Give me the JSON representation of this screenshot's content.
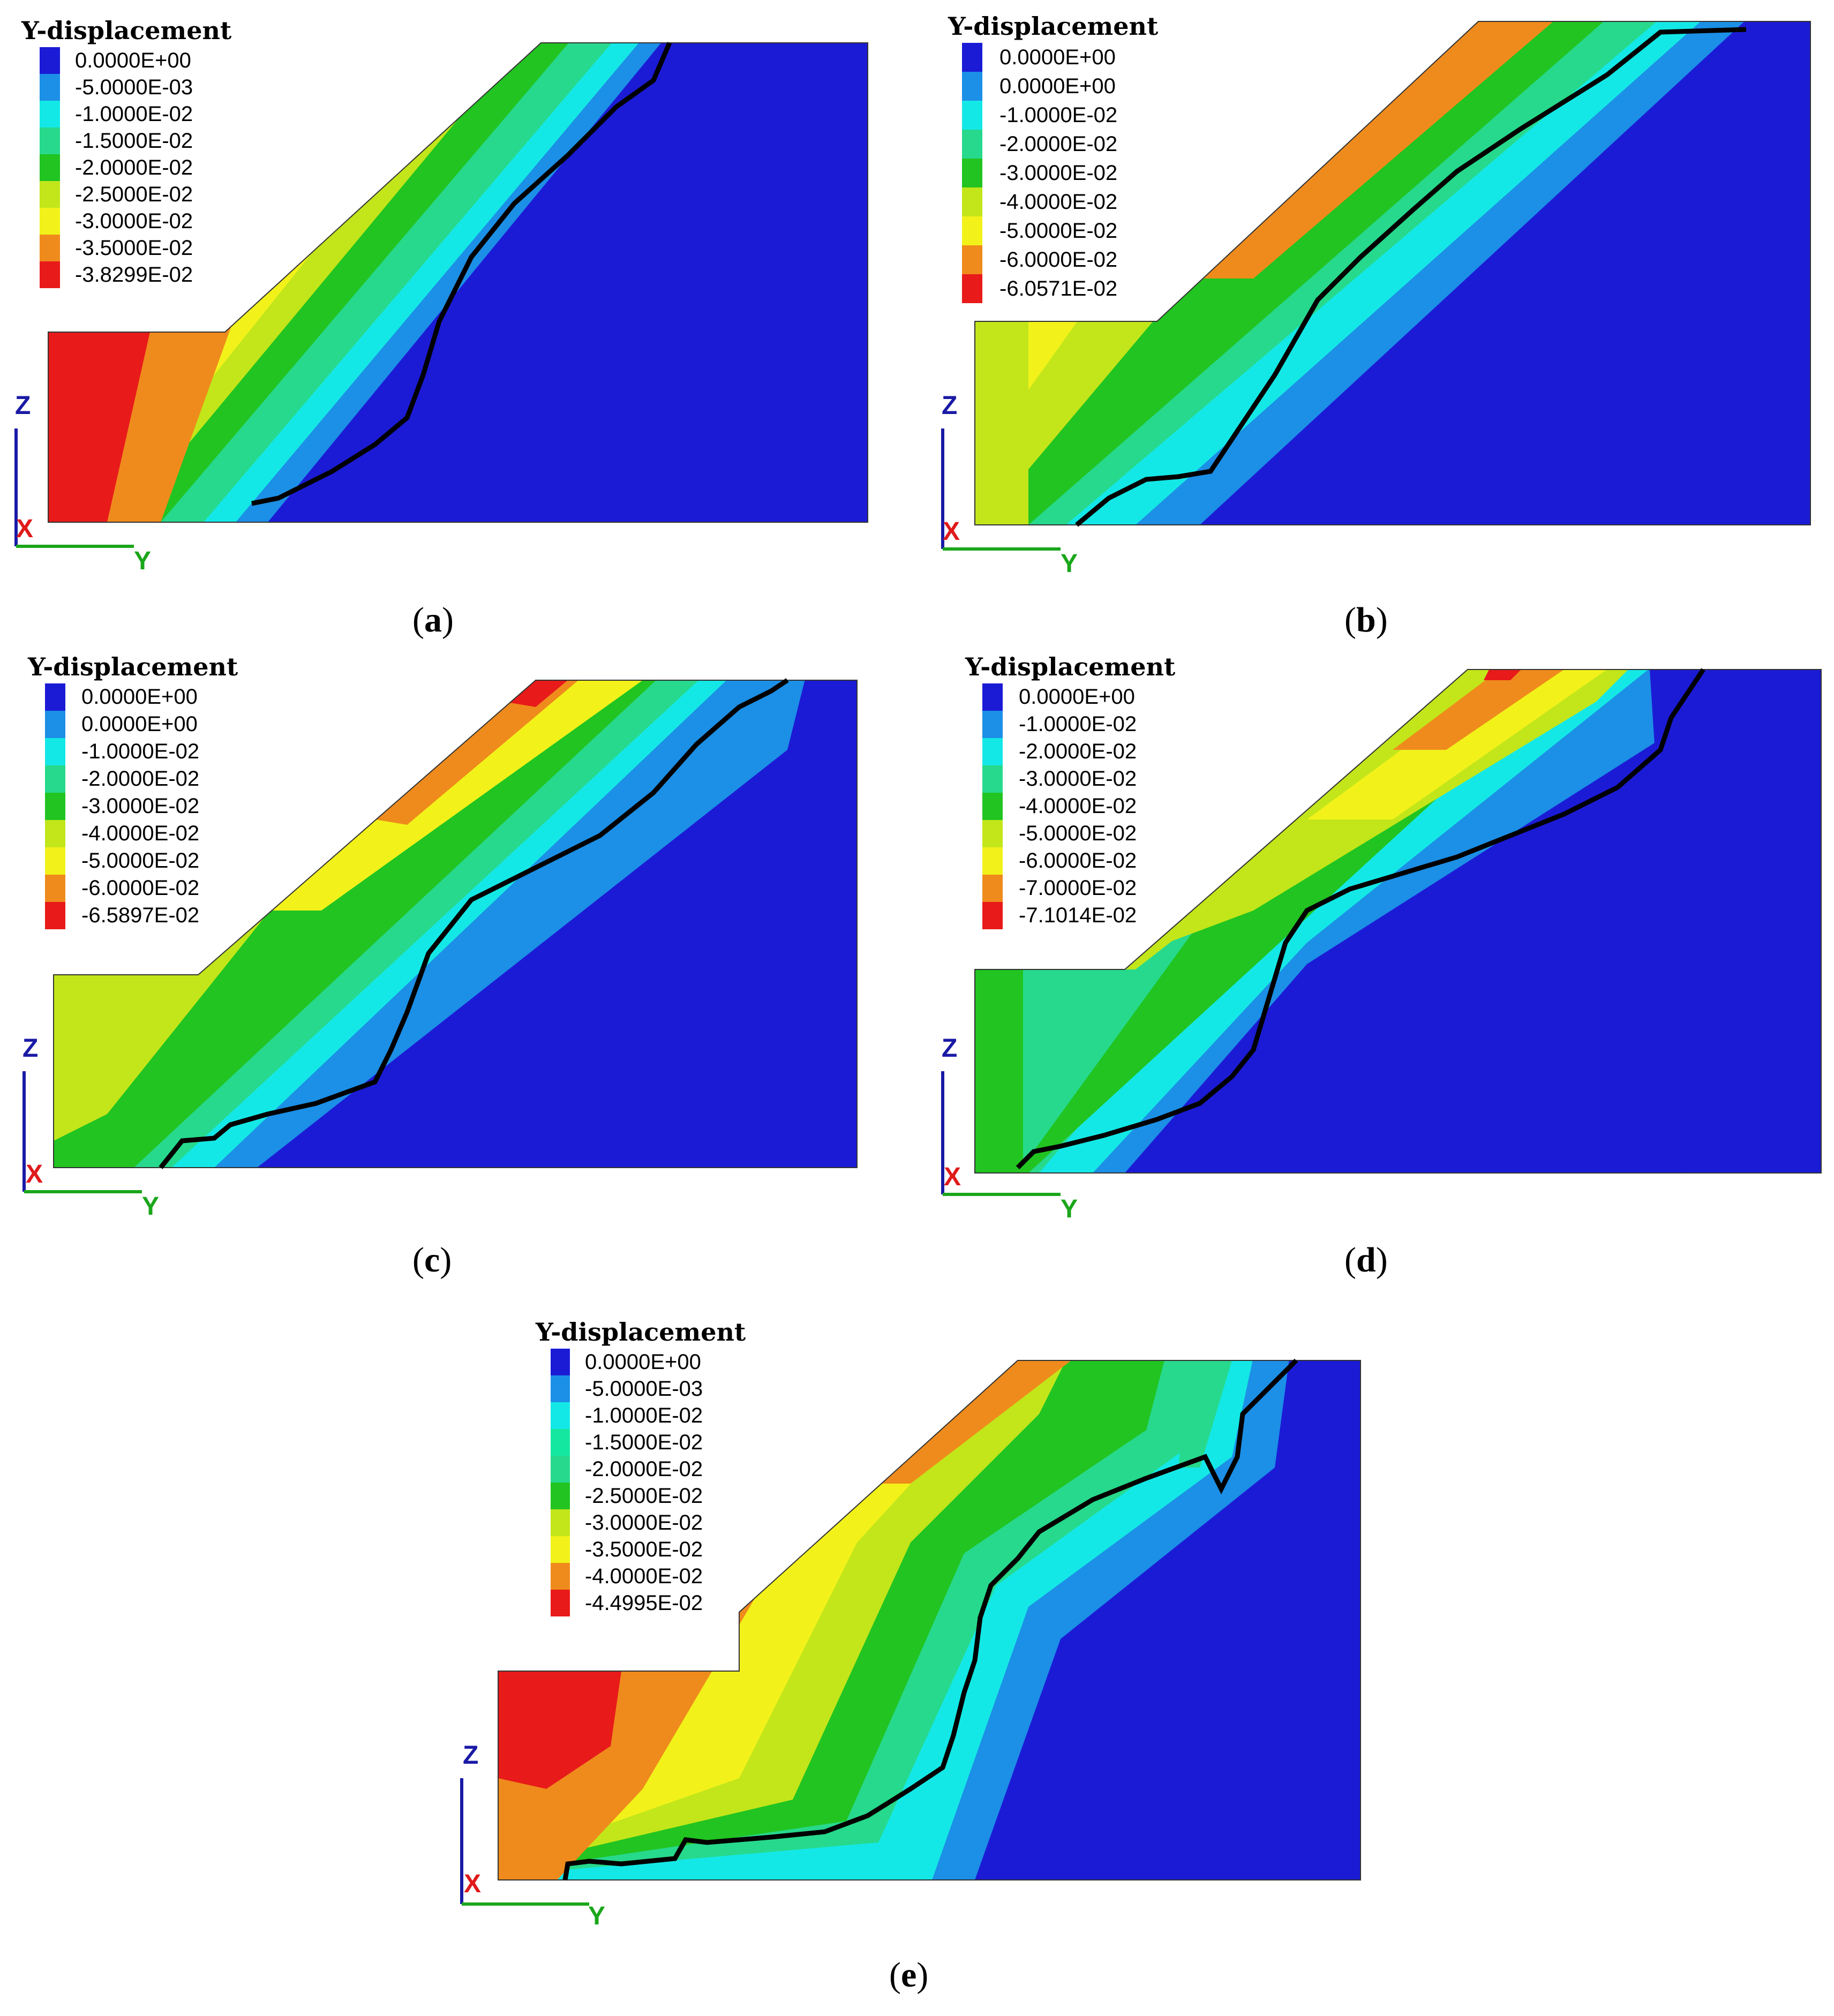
{
  "colors": {
    "blue": "#1b1bd6",
    "blue2": "#1c8fe6",
    "cyan": "#14e8e6",
    "green_light": "#27d98c",
    "green": "#21c421",
    "yellow_green": "#c2e61a",
    "yellow": "#f2f21a",
    "orange": "#ef8b1c",
    "red": "#e81a1a",
    "axis_z": "#1a1aa6",
    "axis_y": "#1aa61a",
    "axis_x": "#e01a1a",
    "failure_line": "#000000"
  },
  "panels": [
    {
      "id": "a",
      "caption": "a",
      "legend_title": "Y-displacement",
      "legend": [
        "0.0000E+00",
        "-5.0000E-03",
        "-1.0000E-02",
        "-1.5000E-02",
        "-2.0000E-02",
        "-2.5000E-02",
        "-3.0000E-02",
        "-3.5000E-02",
        "-3.8299E-02"
      ],
      "axes": {
        "z": "Z",
        "y": "Y",
        "x": "X"
      }
    },
    {
      "id": "b",
      "caption": "b",
      "legend_title": "Y-displacement",
      "legend": [
        "0.0000E+00",
        "0.0000E+00",
        "-1.0000E-02",
        "-2.0000E-02",
        "-3.0000E-02",
        "-4.0000E-02",
        "-5.0000E-02",
        "-6.0000E-02",
        "-6.0571E-02"
      ],
      "axes": {
        "z": "Z",
        "y": "Y",
        "x": "X"
      }
    },
    {
      "id": "c",
      "caption": "c",
      "legend_title": "Y-displacement",
      "legend": [
        "0.0000E+00",
        "0.0000E+00",
        "-1.0000E-02",
        "-2.0000E-02",
        "-3.0000E-02",
        "-4.0000E-02",
        "-5.0000E-02",
        "-6.0000E-02",
        "-6.5897E-02"
      ],
      "axes": {
        "z": "Z",
        "y": "Y",
        "x": "X"
      }
    },
    {
      "id": "d",
      "caption": "d",
      "legend_title": "Y-displacement",
      "legend": [
        "0.0000E+00",
        "-1.0000E-02",
        "-2.0000E-02",
        "-3.0000E-02",
        "-4.0000E-02",
        "-5.0000E-02",
        "-6.0000E-02",
        "-7.0000E-02",
        "-7.1014E-02"
      ],
      "axes": {
        "z": "Z",
        "y": "Y",
        "x": "X"
      }
    },
    {
      "id": "e",
      "caption": "e",
      "legend_title": "Y-displacement",
      "legend": [
        "0.0000E+00",
        "-5.0000E-03",
        "-1.0000E-02",
        "-1.5000E-02",
        "-2.0000E-02",
        "-2.5000E-02",
        "-3.0000E-02",
        "-3.5000E-02",
        "-4.0000E-02",
        "-4.4995E-02"
      ],
      "axes": {
        "z": "Z",
        "y": "Y",
        "x": "X"
      }
    }
  ]
}
